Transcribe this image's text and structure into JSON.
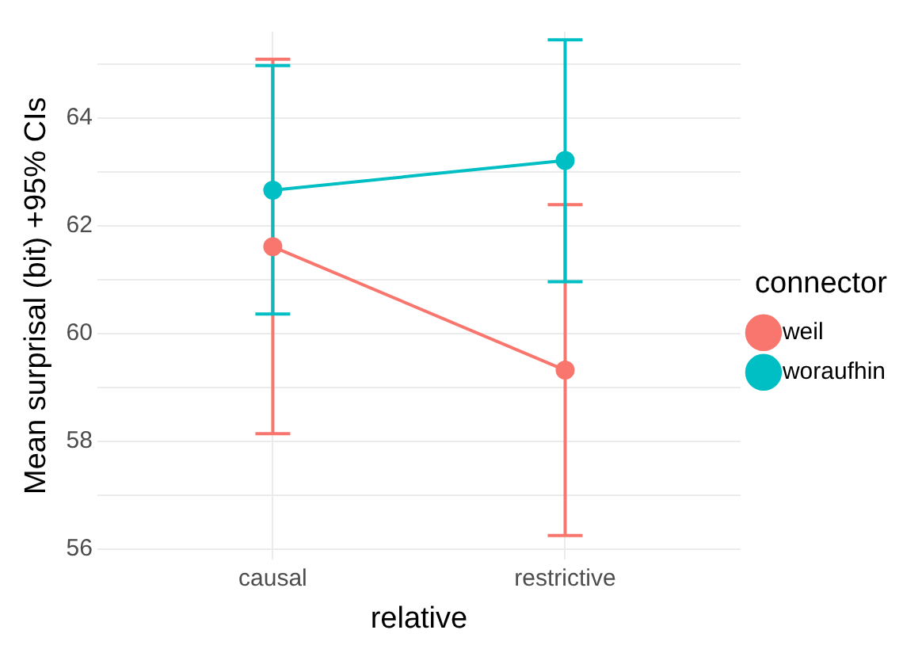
{
  "chart_data": {
    "type": "line",
    "xlabel": "relative",
    "ylabel": "Mean surprisal (bit) +95% CIs",
    "legend_title": "connector",
    "categories": [
      "causal",
      "restrictive"
    ],
    "series": [
      {
        "name": "weil",
        "color": "#f8766d",
        "values": [
          61.61,
          59.32
        ],
        "errors": [
          [
            58.14,
            65.09
          ],
          [
            56.25,
            62.39
          ]
        ]
      },
      {
        "name": "woraufhin",
        "color": "#00bfc4",
        "values": [
          62.66,
          63.21
        ],
        "errors": [
          [
            60.36,
            64.97
          ],
          [
            60.96,
            65.45
          ]
        ]
      }
    ],
    "ylim": [
      55.8,
      65.6
    ],
    "yticks": [
      56,
      {
        "value": 57,
        "label": null
      },
      58,
      {
        "value": 59,
        "label": null
      },
      60,
      {
        "value": 61,
        "label": null
      },
      62,
      {
        "value": 63,
        "label": null
      },
      64,
      {
        "value": 65,
        "label": null
      }
    ],
    "grid": true,
    "legend": "right",
    "marker": "circle",
    "line_style": "solid"
  }
}
